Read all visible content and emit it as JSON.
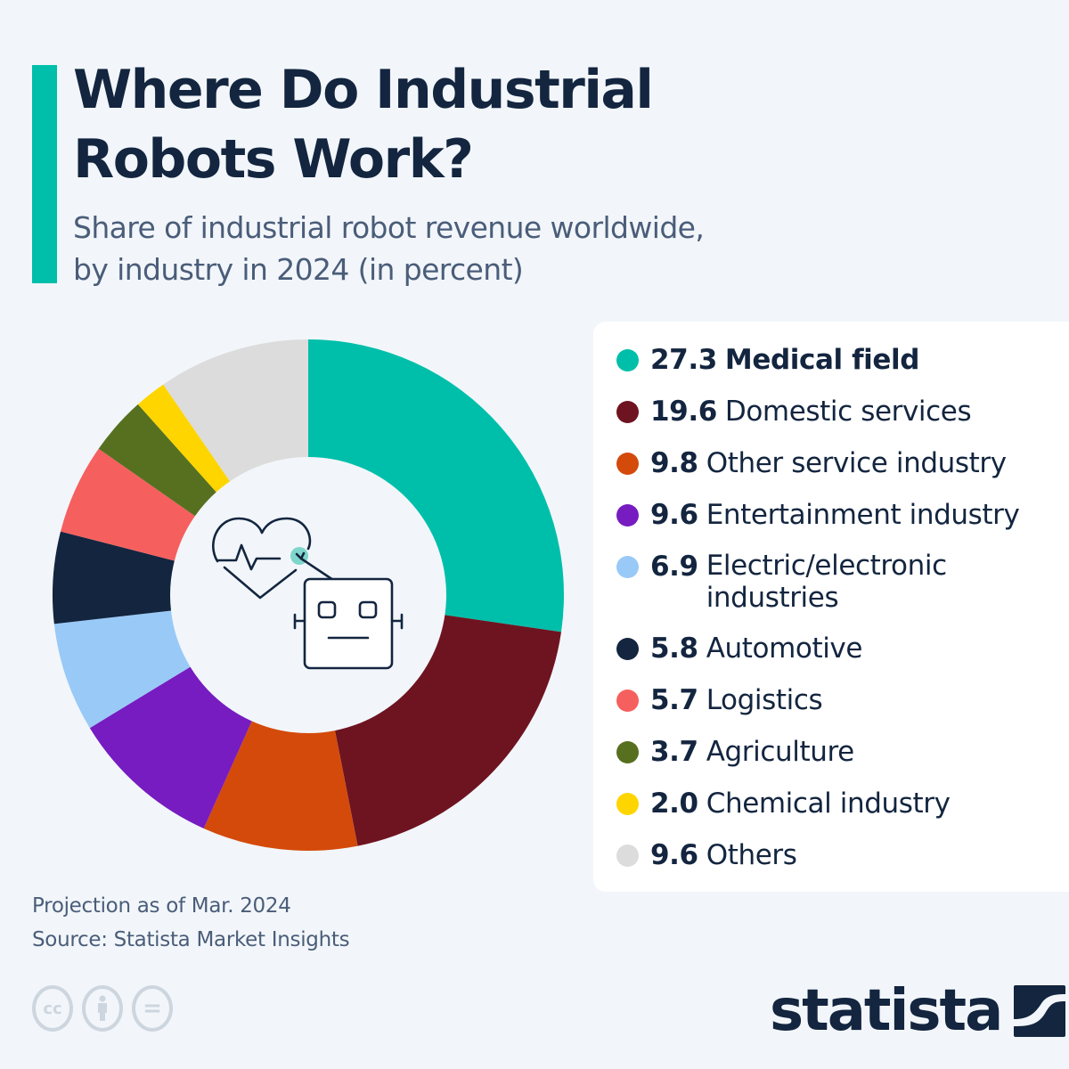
{
  "header": {
    "title_line1": "Where Do Industrial",
    "title_line2": "Robots Work?",
    "subtitle_line1": "Share of industrial robot revenue worldwide,",
    "subtitle_line2": "by industry in 2024 (in percent)"
  },
  "colors": {
    "accent": "#00bfaa",
    "background": "#f2f6fa",
    "text_dark": "#13253f",
    "text_muted": "#4a5d79"
  },
  "chart_data": {
    "type": "pie",
    "subtype": "donut",
    "title": "Where Do Industrial Robots Work?",
    "subtitle": "Share of industrial robot revenue worldwide, by industry in 2024 (in percent)",
    "unit": "percent",
    "legend_position": "right",
    "center_icon": "heart-robot-icon",
    "categories": [
      "Medical field",
      "Domestic services",
      "Other service industry",
      "Entertainment industry",
      "Electric/electronic industries",
      "Automotive",
      "Logistics",
      "Agriculture",
      "Chemical industry",
      "Others"
    ],
    "values": [
      27.3,
      19.6,
      9.8,
      9.6,
      6.9,
      5.8,
      5.7,
      3.7,
      2.0,
      9.6
    ],
    "colors": [
      "#00bfaa",
      "#6e1420",
      "#d44a0b",
      "#761cc0",
      "#99c9f7",
      "#13253f",
      "#f5605e",
      "#56701f",
      "#ffd500",
      "#dcdcdc"
    ]
  },
  "legend": {
    "items": [
      {
        "value": "27.3",
        "label": "Medical field",
        "color": "#00bfaa"
      },
      {
        "value": "19.6",
        "label": "Domestic services",
        "color": "#6e1420"
      },
      {
        "value": "9.8",
        "label": "Other service industry",
        "color": "#d44a0b"
      },
      {
        "value": "9.6",
        "label": "Entertainment industry",
        "color": "#761cc0"
      },
      {
        "value": "6.9",
        "label": "Electric/electronic industries",
        "color": "#99c9f7"
      },
      {
        "value": "5.8",
        "label": "Automotive",
        "color": "#13253f"
      },
      {
        "value": "5.7",
        "label": "Logistics",
        "color": "#f5605e"
      },
      {
        "value": "3.7",
        "label": "Agriculture",
        "color": "#56701f"
      },
      {
        "value": "2.0",
        "label": "Chemical industry",
        "color": "#ffd500"
      },
      {
        "value": "9.6",
        "label": "Others",
        "color": "#dcdcdc"
      }
    ]
  },
  "footer": {
    "note": "Projection as of Mar. 2024",
    "source": "Source: Statista Market Insights",
    "license_icons": [
      "cc-icon",
      "attribution-icon",
      "no-derivatives-icon"
    ],
    "cc_label": "cc",
    "nd_label": "=",
    "logo_text": "statista"
  }
}
